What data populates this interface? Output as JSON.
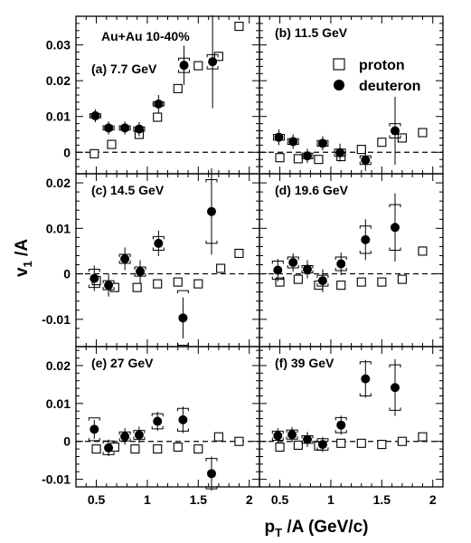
{
  "chart_data": {
    "type": "scatter",
    "ylabel": "v_1/A",
    "ylabel_main": "v",
    "ylabel_sub": "1",
    "ylabel_suffix": " /A",
    "xlabel": "p_T/A (GeV/c)",
    "xlabel_main": "p",
    "xlabel_sub": "T",
    "xlabel_suffix": " /A (GeV/c)",
    "xlim": [
      0.3,
      2.1
    ],
    "x_ticks": [
      0.5,
      1,
      1.5,
      2
    ],
    "x_tick_labels": [
      "0.5",
      "1",
      "1.5",
      "2"
    ],
    "system_label": "Au+Au 10-40%",
    "legend": {
      "proton": "proton",
      "deuteron": "deuteron",
      "position": "top-right panel"
    },
    "series_styles": {
      "proton": "open-square",
      "deuteron": "filled-circle"
    },
    "rows": [
      {
        "ylim": [
          -0.006,
          0.038
        ],
        "ticks": [
          0,
          0.01,
          0.02,
          0.03
        ],
        "tick_labels": [
          "0",
          "0.01",
          "0.02",
          "0.03"
        ]
      },
      {
        "ylim": [
          -0.016,
          0.022
        ],
        "ticks": [
          -0.01,
          0,
          0.01,
          0.02
        ],
        "tick_labels": [
          "-0.01",
          "0",
          "0.01",
          "0.02"
        ]
      },
      {
        "ylim": [
          -0.012,
          0.025
        ],
        "ticks": [
          -0.01,
          0,
          0.01,
          0.02
        ],
        "tick_labels": [
          "-0.01",
          "0",
          "0.01",
          "0.02"
        ]
      }
    ],
    "panels": [
      {
        "label": "(a) 7.7 GeV",
        "proton": [
          [
            0.48,
            -0.0004
          ],
          [
            0.65,
            0.0022
          ],
          [
            0.92,
            0.005
          ],
          [
            1.1,
            0.0098
          ],
          [
            1.3,
            0.0178
          ],
          [
            1.5,
            0.0242
          ],
          [
            1.7,
            0.0268
          ],
          [
            1.9,
            0.0352
          ]
        ],
        "deuteron": [
          [
            0.49,
            0.0102,
            0.0018,
            0.0006
          ],
          [
            0.62,
            0.0068,
            0.0018,
            0.0006
          ],
          [
            0.78,
            0.0068,
            0.0018,
            0.0006
          ],
          [
            0.92,
            0.0065,
            0.002,
            0.0006
          ],
          [
            1.11,
            0.0135,
            0.0025,
            0.0006
          ],
          [
            1.36,
            0.0243,
            0.0055,
            0.002
          ],
          [
            1.64,
            0.0253,
            0.013,
            0.002
          ]
        ]
      },
      {
        "label": "(b) 11.5 GeV",
        "proton": [
          [
            0.5,
            -0.0015
          ],
          [
            0.68,
            -0.0018
          ],
          [
            0.88,
            -0.002
          ],
          [
            1.1,
            -0.0012
          ],
          [
            1.3,
            0.0008
          ],
          [
            1.5,
            0.0028
          ],
          [
            1.7,
            0.004
          ],
          [
            1.9,
            0.0055
          ]
        ],
        "deuteron": [
          [
            0.49,
            0.0042,
            0.0022,
            0.0008
          ],
          [
            0.63,
            0.003,
            0.002,
            0.0008
          ],
          [
            0.77,
            -0.001,
            0.002,
            0.0008
          ],
          [
            0.92,
            0.0025,
            0.002,
            0.0008
          ],
          [
            1.09,
            -0.0001,
            0.0025,
            0.001
          ],
          [
            1.34,
            -0.0022,
            0.003,
            0.0012
          ],
          [
            1.63,
            0.006,
            0.0095,
            0.002
          ]
        ]
      },
      {
        "label": "(c) 14.5 GeV",
        "proton": [
          [
            0.5,
            -0.0015
          ],
          [
            0.68,
            -0.003
          ],
          [
            0.9,
            -0.003
          ],
          [
            1.1,
            -0.0022
          ],
          [
            1.3,
            -0.0018
          ],
          [
            1.5,
            -0.0022
          ],
          [
            1.72,
            0.0012
          ],
          [
            1.9,
            0.0045
          ]
        ],
        "deuteron": [
          [
            0.48,
            -0.001,
            0.0028,
            0.002
          ],
          [
            0.62,
            -0.0025,
            0.0025,
            0.001
          ],
          [
            0.78,
            0.0033,
            0.0025,
            0.001
          ],
          [
            0.93,
            0.0005,
            0.0025,
            0.001
          ],
          [
            1.11,
            0.0067,
            0.0028,
            0.0015
          ],
          [
            1.35,
            -0.0097,
            0.0045,
            0.006
          ],
          [
            1.63,
            0.0137,
            0.0095,
            0.007
          ]
        ]
      },
      {
        "label": "(d) 19.6 GeV",
        "proton": [
          [
            0.5,
            -0.0018
          ],
          [
            0.68,
            -0.0012
          ],
          [
            0.88,
            -0.0025
          ],
          [
            1.1,
            -0.0025
          ],
          [
            1.3,
            -0.0018
          ],
          [
            1.5,
            -0.0018
          ],
          [
            1.7,
            -0.0012
          ],
          [
            1.9,
            0.005
          ]
        ],
        "deuteron": [
          [
            0.48,
            0.0008,
            0.0025,
            0.002
          ],
          [
            0.63,
            0.0025,
            0.002,
            0.0012
          ],
          [
            0.77,
            0.001,
            0.002,
            0.0008
          ],
          [
            0.92,
            -0.0015,
            0.0025,
            0.0012
          ],
          [
            1.1,
            0.0022,
            0.0025,
            0.0015
          ],
          [
            1.34,
            0.0075,
            0.0045,
            0.003
          ],
          [
            1.63,
            0.0102,
            0.0075,
            0.005
          ]
        ]
      },
      {
        "label": "(e) 27 GeV",
        "proton": [
          [
            0.5,
            -0.002
          ],
          [
            0.68,
            -0.0015
          ],
          [
            0.88,
            -0.002
          ],
          [
            1.1,
            -0.002
          ],
          [
            1.3,
            -0.0015
          ],
          [
            1.5,
            -0.002
          ],
          [
            1.7,
            0.0012
          ],
          [
            1.9,
            0.0
          ]
        ],
        "deuteron": [
          [
            0.48,
            0.0032,
            0.0025,
            0.003
          ],
          [
            0.62,
            -0.0017,
            0.0022,
            0.0018
          ],
          [
            0.78,
            0.0013,
            0.0022,
            0.0012
          ],
          [
            0.92,
            0.0017,
            0.0022,
            0.0012
          ],
          [
            1.1,
            0.0053,
            0.0025,
            0.002
          ],
          [
            1.35,
            0.0057,
            0.0035,
            0.003
          ],
          [
            1.63,
            -0.0085,
            0.0045,
            0.004
          ]
        ]
      },
      {
        "label": "(f) 39 GeV",
        "proton": [
          [
            0.5,
            -0.0015
          ],
          [
            0.68,
            -0.001
          ],
          [
            0.88,
            -0.0012
          ],
          [
            1.1,
            -0.0005
          ],
          [
            1.3,
            -0.0005
          ],
          [
            1.5,
            -0.0008
          ],
          [
            1.7,
            0.0
          ],
          [
            1.9,
            0.0012
          ]
        ],
        "deuteron": [
          [
            0.48,
            0.0015,
            0.002,
            0.0012
          ],
          [
            0.62,
            0.0018,
            0.002,
            0.0012
          ],
          [
            0.77,
            0.0005,
            0.002,
            0.001
          ],
          [
            0.92,
            -0.0008,
            0.002,
            0.0015
          ],
          [
            1.1,
            0.0043,
            0.0025,
            0.002
          ],
          [
            1.34,
            0.0165,
            0.005,
            0.0045
          ],
          [
            1.63,
            0.0142,
            0.0075,
            0.006
          ]
        ]
      }
    ]
  }
}
